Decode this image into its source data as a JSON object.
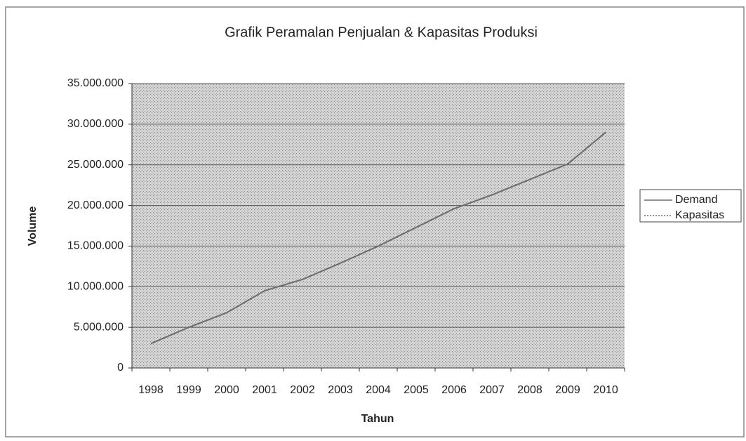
{
  "chart_data": {
    "type": "line",
    "title": "Grafik Peramalan Penjualan & Kapasitas Produksi",
    "x_label": "Tahun",
    "y_label": "Volume",
    "categories": [
      "1998",
      "1999",
      "2000",
      "2001",
      "2002",
      "2003",
      "2004",
      "2005",
      "2006",
      "2007",
      "2008",
      "2009",
      "2010"
    ],
    "series": [
      {
        "name": "Demand",
        "color": "#6e6e6e",
        "dash": false,
        "values": [
          3000000,
          5000000,
          6800000,
          9500000,
          10900000,
          12900000,
          15000000,
          17300000,
          19600000,
          21300000,
          23200000,
          25100000,
          29000000
        ]
      },
      {
        "name": "Kapasitas",
        "color": "#6e6e6e",
        "dash": true,
        "values": [
          3000000,
          5000000,
          6800000,
          9500000,
          10900000,
          12900000,
          15000000,
          17300000,
          19600000,
          21300000,
          23200000,
          25100000,
          29000000
        ]
      }
    ],
    "ylim": [
      0,
      35000000
    ],
    "yticks": [
      0,
      {
        "value": 5000000,
        "label": "5.000.000"
      },
      {
        "value": 10000000,
        "label": "10.000.000"
      },
      {
        "value": 15000000,
        "label": "15.000.000"
      },
      {
        "value": 20000000,
        "label": "20.000.000"
      },
      {
        "value": 25000000,
        "label": "25.000.000"
      },
      {
        "value": 30000000,
        "label": "30.000.000"
      },
      {
        "value": 35000000,
        "label": "35.000.000"
      }
    ],
    "grid": true,
    "legend": "right"
  }
}
